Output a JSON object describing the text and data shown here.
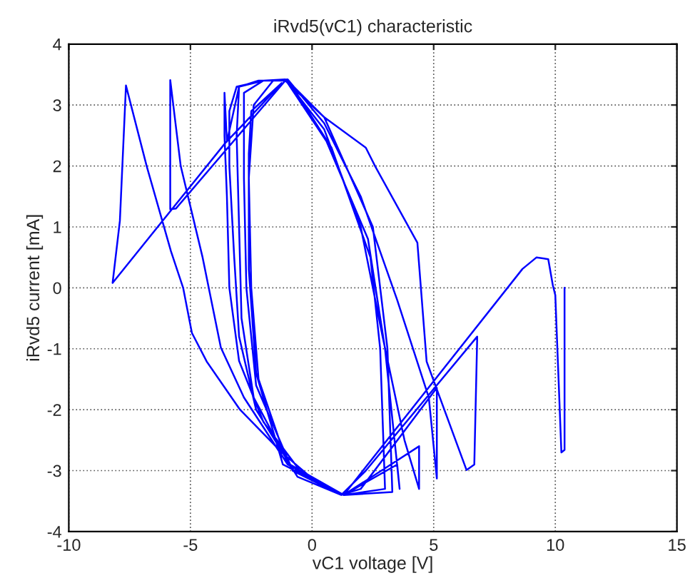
{
  "chart_data": {
    "type": "line",
    "title": "iRvd5(vC1) characteristic",
    "xlabel": "vC1 voltage [V]",
    "ylabel": "iRvd5 current [mA]",
    "xlim": [
      -10,
      15
    ],
    "xticks": [
      -10,
      -5,
      0,
      5,
      10,
      15
    ],
    "ylim": [
      -4,
      4
    ],
    "yticks": [
      -4,
      -3,
      -2,
      -1,
      0,
      1,
      2,
      3,
      4
    ],
    "grid": true,
    "line_style": "solid",
    "marker": "none",
    "series": [
      {
        "color": "#0000ff",
        "x": [
          10.38,
          10.38,
          10.25,
          10.0,
          9.9,
          9.71,
          9.23,
          8.65,
          1.3,
          -0.5,
          -2.0,
          -3.0,
          -3.4,
          -3.5,
          -3.6,
          -3.6,
          -3.5,
          -3.0,
          -2.2,
          -1.0,
          0.5,
          2.21,
          2.6,
          4.33,
          4.71,
          6.35,
          6.67,
          6.79,
          2.21,
          1.2,
          -0.6,
          -2.3,
          -3.0,
          -3.2,
          -3.4,
          -3.4,
          -3.1,
          -2.0,
          -1.0,
          0.5,
          2.0,
          3.5,
          4.8,
          5.13,
          5.13,
          2.0,
          1.2,
          -0.8,
          -2.4,
          -2.9,
          -3.0,
          -3.1,
          -3.0,
          -2.0,
          -1.1,
          0.5,
          2.0,
          2.9,
          3.8,
          4.4,
          4.4,
          1.3,
          -0.9,
          -2.3,
          -2.7,
          -2.8,
          -2.8,
          -2.0,
          -1.1,
          0.6,
          2.3,
          3.0,
          3.6,
          3.5,
          1.3,
          -1.0,
          -2.2,
          -2.5,
          -2.6,
          -2.4,
          -1.6,
          -1.0,
          0.8,
          2.4,
          2.8,
          3.0,
          1.3,
          -1.2,
          -2.3,
          -2.6,
          -2.6,
          -2.5,
          -1.25,
          -2.79,
          -3.56,
          -8.2,
          -7.9,
          -7.65,
          -6.8,
          -5.8,
          -5.3,
          -4.94,
          -4.33,
          -2.98,
          -1.25,
          0.1,
          1.06,
          -1.0,
          -2.8,
          -3.75,
          -4.5,
          -5.4,
          -5.83,
          -5.83,
          -5.6,
          -1.1,
          0.5,
          2.5,
          3.1,
          3.3,
          1.3
        ],
        "values": [
          0,
          -2.66,
          -2.7,
          -0.12,
          0.04,
          0.47,
          0.5,
          0.31,
          -3.4,
          -3.0,
          -2.2,
          -1.2,
          0,
          1.5,
          2.5,
          3.2,
          2.4,
          3.3,
          3.4,
          3.4,
          2.8,
          2.3,
          1.99,
          0.74,
          -1.21,
          -2.99,
          -2.9,
          -0.8,
          -3.0,
          -3.4,
          -3.1,
          -2.0,
          -0.8,
          0.5,
          2.0,
          2.9,
          3.3,
          3.4,
          3.42,
          2.7,
          1.5,
          -0.2,
          -1.8,
          -3.13,
          -1.64,
          -3.3,
          -3.4,
          -3.0,
          -1.8,
          -0.5,
          1.0,
          2.5,
          3.3,
          3.4,
          3.42,
          2.6,
          1.0,
          -0.8,
          -2.5,
          -3.3,
          -2.6,
          -3.4,
          -2.9,
          -1.6,
          0,
          1.8,
          3.2,
          3.4,
          3.42,
          2.4,
          0.8,
          -1.0,
          -3.3,
          -2.9,
          -3.4,
          -2.9,
          -1.5,
          0,
          1.8,
          3.0,
          3.4,
          3.42,
          2.3,
          0.5,
          -1.0,
          -3.3,
          -3.4,
          -2.9,
          -1.4,
          0.3,
          2.2,
          2.9,
          3.36,
          2.7,
          2.38,
          0.08,
          1.1,
          3.32,
          2.0,
          0.6,
          0,
          -0.74,
          -1.21,
          -1.99,
          -2.7,
          -3.16,
          -3.36,
          -2.9,
          -1.8,
          -0.98,
          0.5,
          2.0,
          3.41,
          1.29,
          1.3,
          3.4,
          2.8,
          1.0,
          -1.0,
          -3.35,
          -3.4
        ]
      }
    ]
  }
}
